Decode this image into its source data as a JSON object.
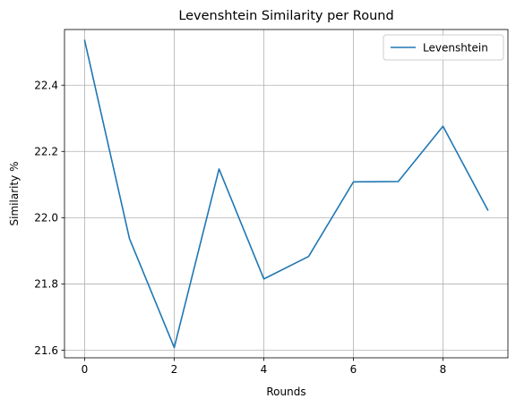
{
  "chart_data": {
    "type": "line",
    "title": "Levenshtein Similarity per Round",
    "xlabel": "Rounds",
    "ylabel": "Similarity %",
    "x": [
      0,
      1,
      2,
      3,
      4,
      5,
      6,
      7,
      8,
      9
    ],
    "series": [
      {
        "name": "Levenshtein",
        "color": "#1f77b4",
        "values": [
          22.535,
          21.937,
          21.608,
          22.147,
          21.815,
          21.883,
          22.108,
          22.109,
          22.276,
          22.023
        ]
      }
    ],
    "xlim": [
      -0.45,
      9.45
    ],
    "ylim": [
      21.577,
      22.568
    ],
    "xticks": [
      0,
      2,
      4,
      6,
      8
    ],
    "yticks": [
      21.6,
      21.8,
      22.0,
      22.2,
      22.4
    ],
    "ytick_labels": [
      "21.6",
      "21.8",
      "22.0",
      "22.2",
      "22.4"
    ],
    "grid": true,
    "legend_position": "top-right"
  }
}
